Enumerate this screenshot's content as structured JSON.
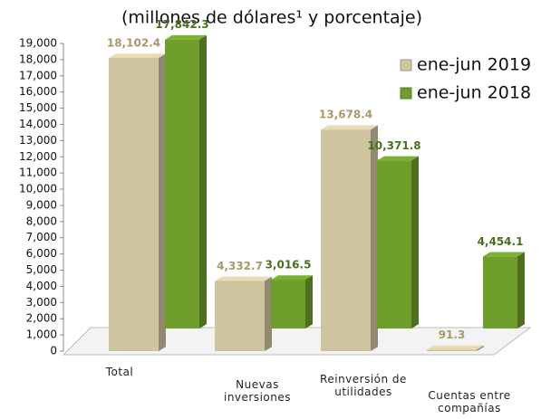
{
  "chart_data": {
    "type": "bar3d",
    "title": "(millones de dólares¹ y porcentaje)",
    "categories": [
      "Total",
      "Nuevas inversiones",
      "Reinversión de utilidades",
      "Cuentas entre compañías"
    ],
    "series": [
      {
        "name": "ene-jun 2019",
        "color": "#cfc4a0",
        "values": [
          18102.4,
          4332.7,
          13678.4,
          91.3
        ],
        "value_labels": [
          "18,102.4",
          "4,332.7",
          "13,678.4",
          "91.3"
        ]
      },
      {
        "name": "ene-jun 2018",
        "color": "#6f9e2c",
        "values": [
          17842.3,
          3016.5,
          10371.8,
          4454.1
        ],
        "value_labels": [
          "17,842.3",
          "3,016.5",
          "10,371.8",
          "4,454.1"
        ]
      }
    ],
    "ylim": [
      0,
      19000
    ],
    "yticks": [
      0,
      {
        "value": 1000,
        "label": "1,000"
      },
      {
        "value": 2000,
        "label": "2,000"
      },
      {
        "value": 3000,
        "label": "3,000"
      },
      {
        "value": 4000,
        "label": "4,000"
      },
      {
        "value": 5000,
        "label": "5,000"
      },
      {
        "value": 6000,
        "label": "6,000"
      },
      {
        "value": 7000,
        "label": "7,000"
      },
      {
        "value": 8000,
        "label": "8,000"
      },
      {
        "value": 9000,
        "label": "9,000"
      },
      {
        "value": 10000,
        "label": "10,000"
      },
      {
        "value": 11000,
        "label": "11,000"
      },
      {
        "value": 12000,
        "label": "12,000"
      },
      {
        "value": 13000,
        "label": "13,000"
      },
      {
        "value": 14000,
        "label": "14,000"
      },
      {
        "value": 15000,
        "label": "15,000"
      },
      {
        "value": 16000,
        "label": "16,000"
      },
      {
        "value": 17000,
        "label": "17,000"
      },
      {
        "value": 18000,
        "label": "18,000"
      },
      {
        "value": 19000,
        "label": "19,000"
      }
    ],
    "legend": "top-right"
  }
}
